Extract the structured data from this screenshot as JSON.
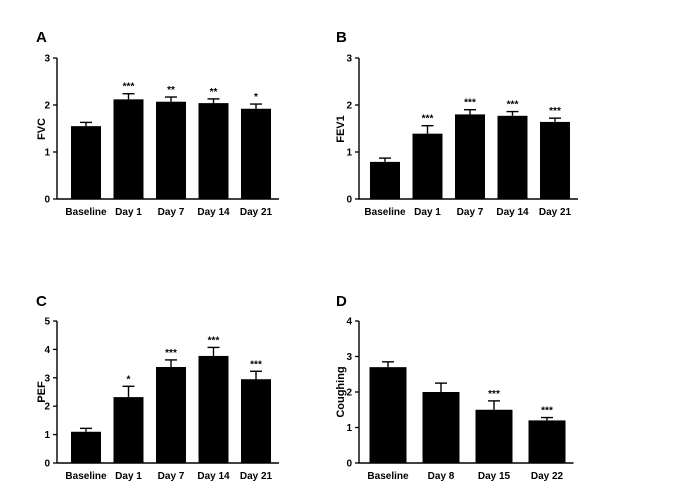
{
  "chart_data": [
    {
      "type": "bar",
      "panel": "A",
      "ylabel": "FVC",
      "ylim": [
        0,
        3
      ],
      "yticks": [
        "0",
        "1",
        "2",
        "3"
      ],
      "categories": [
        "Baseline",
        "Day 1",
        "Day 7",
        "Day 14",
        "Day 21"
      ],
      "values": [
        1.55,
        2.12,
        2.07,
        2.04,
        1.92
      ],
      "errors": [
        0.08,
        0.12,
        0.1,
        0.09,
        0.1
      ],
      "significance": [
        "",
        "***",
        "**",
        "**",
        "*"
      ],
      "grid": false
    },
    {
      "type": "bar",
      "panel": "B",
      "ylabel": "FEV1",
      "ylim": [
        0,
        3
      ],
      "yticks": [
        "0",
        "1",
        "2",
        "3"
      ],
      "categories": [
        "Baseline",
        "Day 1",
        "Day 7",
        "Day 14",
        "Day 21"
      ],
      "values": [
        0.79,
        1.39,
        1.8,
        1.77,
        1.64
      ],
      "errors": [
        0.08,
        0.17,
        0.1,
        0.09,
        0.08
      ],
      "significance": [
        "",
        "***",
        "***",
        "***",
        "***"
      ],
      "grid": false
    },
    {
      "type": "bar",
      "panel": "C",
      "ylabel": "PEF",
      "ylim": [
        0,
        5
      ],
      "yticks": [
        "0",
        "1",
        "2",
        "3",
        "4",
        "5"
      ],
      "categories": [
        "Baseline",
        "Day 1",
        "Day 7",
        "Day 14",
        "Day 21"
      ],
      "values": [
        1.1,
        2.32,
        3.38,
        3.77,
        2.95
      ],
      "errors": [
        0.12,
        0.38,
        0.25,
        0.3,
        0.28
      ],
      "significance": [
        "",
        "*",
        "***",
        "***",
        "***"
      ],
      "grid": false
    },
    {
      "type": "bar",
      "panel": "D",
      "ylabel": "Coughing",
      "ylim": [
        0,
        4
      ],
      "yticks": [
        "0",
        "1",
        "2",
        "3",
        "4"
      ],
      "categories": [
        "Baseline",
        "Day 8",
        "Day 15",
        "Day 22"
      ],
      "values": [
        2.7,
        2.0,
        1.5,
        1.2
      ],
      "errors": [
        0.15,
        0.25,
        0.25,
        0.08
      ],
      "significance": [
        "",
        "",
        "***",
        "***"
      ],
      "grid": false
    }
  ]
}
